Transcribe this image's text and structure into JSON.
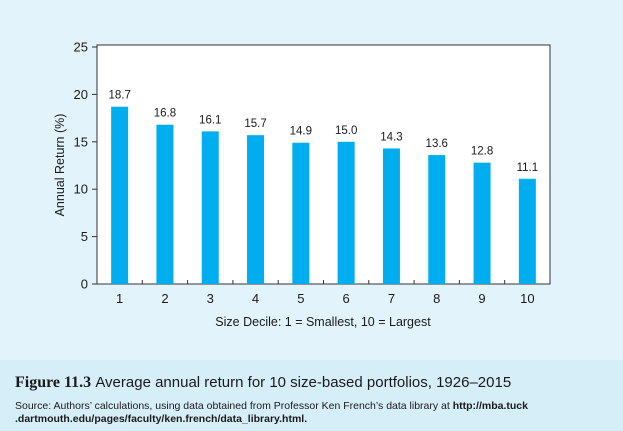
{
  "chart_data": {
    "type": "bar",
    "categories": [
      "1",
      "2",
      "3",
      "4",
      "5",
      "6",
      "7",
      "8",
      "9",
      "10"
    ],
    "values": [
      18.7,
      16.8,
      16.1,
      15.7,
      14.9,
      15.0,
      14.3,
      13.6,
      12.8,
      11.1
    ],
    "value_labels": [
      "18.7",
      "16.8",
      "16.1",
      "15.7",
      "14.9",
      "15.0",
      "14.3",
      "13.6",
      "12.8",
      "11.1"
    ],
    "xlabel": "Size Decile: 1 = Smallest, 10 = Largest",
    "ylabel": "Annual Return (%)",
    "ylim": [
      0,
      25
    ],
    "yticks": [
      0,
      5,
      10,
      15,
      20,
      25
    ],
    "ytick_labels": [
      "0",
      "5",
      "10",
      "15",
      "20",
      "25"
    ],
    "bar_color": "#00aeef",
    "grid": false
  },
  "caption": {
    "figure_number": "Figure 11.3",
    "title": "Average annual return for 10 size-based portfolios, 1926–2015",
    "source_prefix": "Source: Authors’ calculations, using data obtained from Professor Ken French’s data library at ",
    "source_url_part1": "http://mba.tuck",
    "source_url_part2": ".dartmouth.edu/pages/faculty/ken.french/data_library.html."
  },
  "colors": {
    "figure_background": "#e2f3fb",
    "plot_background": "#ffffff",
    "caption_background": "#d6eef8",
    "bar": "#00aeef"
  }
}
